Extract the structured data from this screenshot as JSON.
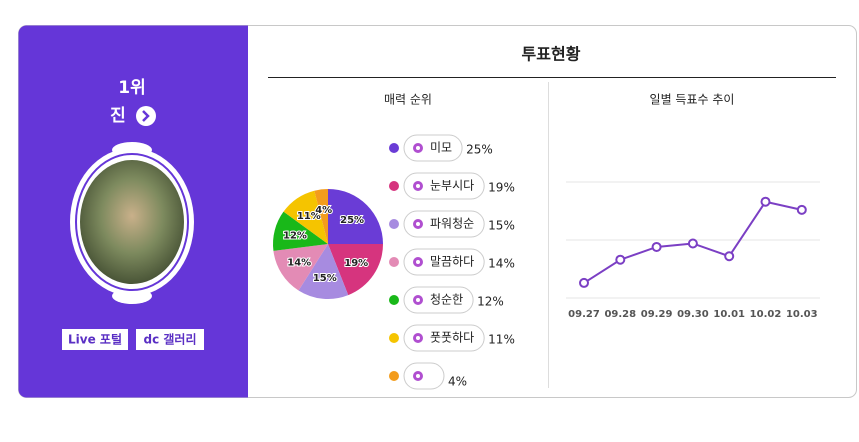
{
  "profile": {
    "rank": "1위",
    "name": "진",
    "buttons": [
      "Live 포털",
      "dc 갤러리"
    ]
  },
  "panel_title": "투표현황",
  "chart_data": [
    {
      "type": "pie",
      "title": "매력 순위",
      "categories": [
        "미모",
        "눈부시다",
        "파워청순",
        "말끔하다",
        "청순한",
        "풋풋하다",
        null
      ],
      "values": [
        25,
        19,
        15,
        14,
        12,
        11,
        4
      ],
      "value_labels": [
        "25%",
        "19%",
        "15%",
        "14%",
        "12%",
        "11%",
        "4%"
      ],
      "colors": [
        "#6a3cd6",
        "#d6347e",
        "#a78be0",
        "#e38bb5",
        "#19b819",
        "#f5c400",
        "#f39c1c"
      ]
    },
    {
      "type": "line",
      "title": "일별 득표수 추이",
      "categories": [
        "09.27",
        "09.28",
        "09.29",
        "09.30",
        "10.01",
        "10.02",
        "10.03"
      ],
      "series": [
        {
          "color": "#7b3fc4",
          "values": [
            13,
            33,
            44,
            47,
            36,
            83,
            76
          ]
        }
      ],
      "ylim": [
        0,
        100
      ],
      "grid": true
    }
  ]
}
